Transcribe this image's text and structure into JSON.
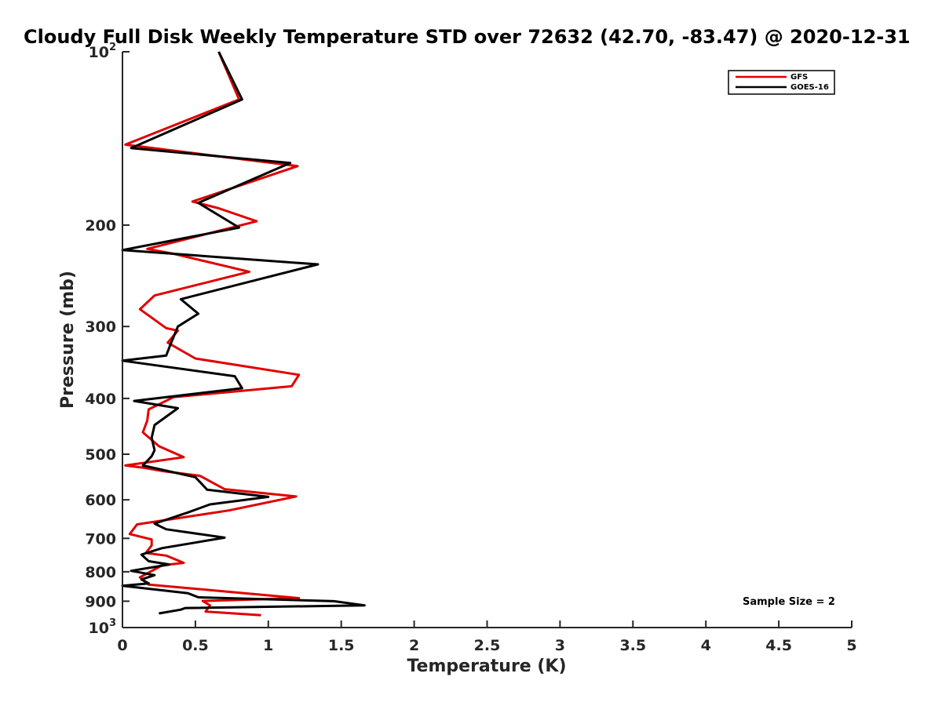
{
  "chart_data": {
    "type": "line",
    "title": "Cloudy Full Disk Weekly Temperature STD over 72632 (42.70, -83.47) @ 2020-12-31",
    "xlabel": "Temperature (K)",
    "ylabel": "Pressure (mb)",
    "xlim": [
      0,
      5
    ],
    "ylim": [
      100,
      1000
    ],
    "yscale": "log",
    "y_reversed": true,
    "grid": false,
    "x_ticks": [
      "0",
      "0.5",
      "1",
      "1.5",
      "2",
      "2.5",
      "3",
      "3.5",
      "4",
      "4.5",
      "5"
    ],
    "y_ticks": [
      {
        "value": 100,
        "label": "10",
        "sup": "2"
      },
      {
        "value": 200,
        "label": "200",
        "sup": ""
      },
      {
        "value": 300,
        "label": "300",
        "sup": ""
      },
      {
        "value": 400,
        "label": "400",
        "sup": ""
      },
      {
        "value": 500,
        "label": "500",
        "sup": ""
      },
      {
        "value": 600,
        "label": "600",
        "sup": ""
      },
      {
        "value": 700,
        "label": "700",
        "sup": ""
      },
      {
        "value": 800,
        "label": "800",
        "sup": ""
      },
      {
        "value": 900,
        "label": "900",
        "sup": ""
      },
      {
        "value": 1000,
        "label": "10",
        "sup": "3"
      }
    ],
    "legend_position": "top-right",
    "annotation": "Sample Size = 2",
    "series": [
      {
        "name": "GFS",
        "color": "#e00000",
        "points": [
          [
            0.66,
            100
          ],
          [
            0.8,
            121
          ],
          [
            0.02,
            145
          ],
          [
            1.2,
            158
          ],
          [
            0.48,
            182
          ],
          [
            0.66,
            187
          ],
          [
            0.92,
            197
          ],
          [
            0.17,
            220
          ],
          [
            0.34,
            224
          ],
          [
            0.87,
            241
          ],
          [
            0.22,
            265
          ],
          [
            0.12,
            280
          ],
          [
            0.3,
            302
          ],
          [
            0.38,
            305
          ],
          [
            0.31,
            320
          ],
          [
            0.5,
            341
          ],
          [
            1.21,
            364
          ],
          [
            1.16,
            381
          ],
          [
            0.35,
            398
          ],
          [
            0.18,
            418
          ],
          [
            0.17,
            437
          ],
          [
            0.14,
            458
          ],
          [
            0.25,
            484
          ],
          [
            0.42,
            506
          ],
          [
            0.02,
            523
          ],
          [
            0.15,
            528
          ],
          [
            0.28,
            535
          ],
          [
            0.53,
            545
          ],
          [
            0.7,
            575
          ],
          [
            1.19,
            592
          ],
          [
            0.73,
            626
          ],
          [
            0.1,
            662
          ],
          [
            0.05,
            688
          ],
          [
            0.2,
            703
          ],
          [
            0.2,
            720
          ],
          [
            0.16,
            742
          ],
          [
            0.3,
            750
          ],
          [
            0.42,
            772
          ],
          [
            0.27,
            780
          ],
          [
            0.12,
            818
          ],
          [
            0.18,
            842
          ],
          [
            0.8,
            870
          ],
          [
            1.21,
            889
          ],
          [
            0.55,
            899
          ],
          [
            0.6,
            915
          ],
          [
            0.57,
            938
          ],
          [
            0.95,
            952
          ]
        ]
      },
      {
        "name": "GOES-16",
        "color": "#000000",
        "points": [
          [
            0.66,
            100
          ],
          [
            0.82,
            121
          ],
          [
            0.06,
            147
          ],
          [
            1.15,
            156
          ],
          [
            0.52,
            183
          ],
          [
            0.8,
            202
          ],
          [
            0.0,
            221
          ],
          [
            1.34,
            234
          ],
          [
            0.4,
            269
          ],
          [
            0.52,
            285
          ],
          [
            0.38,
            300
          ],
          [
            0.33,
            322
          ],
          [
            0.3,
            337
          ],
          [
            0.0,
            344
          ],
          [
            0.77,
            366
          ],
          [
            0.82,
            384
          ],
          [
            0.08,
            404
          ],
          [
            0.38,
            416
          ],
          [
            0.22,
            445
          ],
          [
            0.2,
            468
          ],
          [
            0.22,
            492
          ],
          [
            0.2,
            504
          ],
          [
            0.14,
            523
          ],
          [
            0.5,
            548
          ],
          [
            0.58,
            576
          ],
          [
            1.0,
            593
          ],
          [
            0.6,
            611
          ],
          [
            0.45,
            631
          ],
          [
            0.22,
            660
          ],
          [
            0.3,
            675
          ],
          [
            0.7,
            698
          ],
          [
            0.27,
            728
          ],
          [
            0.13,
            747
          ],
          [
            0.18,
            767
          ],
          [
            0.32,
            777
          ],
          [
            0.06,
            797
          ],
          [
            0.22,
            811
          ],
          [
            0.13,
            825
          ],
          [
            0.18,
            838
          ],
          [
            0.0,
            846
          ],
          [
            0.45,
            872
          ],
          [
            0.52,
            886
          ],
          [
            1.45,
            900
          ],
          [
            1.66,
            915
          ],
          [
            0.43,
            925
          ],
          [
            0.4,
            931
          ],
          [
            0.25,
            945
          ]
        ]
      }
    ]
  }
}
